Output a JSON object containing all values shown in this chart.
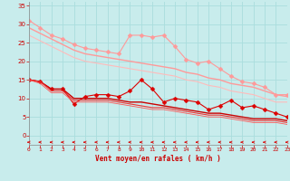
{
  "background_color": "#c8ecec",
  "grid_color": "#aadddd",
  "xlabel": "Vent moyen/en rafales ( km/h )",
  "xlabel_color": "#cc0000",
  "tick_color": "#cc0000",
  "x_ticks": [
    0,
    1,
    2,
    3,
    4,
    5,
    6,
    7,
    8,
    9,
    10,
    11,
    12,
    13,
    14,
    15,
    16,
    17,
    18,
    19,
    20,
    21,
    22,
    23
  ],
  "y_ticks": [
    0,
    5,
    10,
    15,
    20,
    25,
    30,
    35
  ],
  "ylim": [
    -2.5,
    36
  ],
  "xlim": [
    0,
    23
  ],
  "lines": [
    {
      "x": [
        0,
        1,
        2,
        3,
        4,
        5,
        6,
        7,
        8,
        9,
        10,
        11,
        12,
        13,
        14,
        15,
        16,
        17,
        18,
        19,
        20,
        21,
        22,
        23
      ],
      "y": [
        31,
        29,
        27,
        26,
        24.5,
        23.5,
        23,
        22.5,
        22,
        27,
        27,
        26.5,
        27,
        24,
        20.5,
        19.5,
        20,
        18,
        16,
        14.5,
        14,
        13,
        11,
        11
      ],
      "color": "#ff9999",
      "marker": "D",
      "lw": 0.8,
      "ms": 2.5
    },
    {
      "x": [
        0,
        1,
        2,
        3,
        4,
        5,
        6,
        7,
        8,
        9,
        10,
        11,
        12,
        13,
        14,
        15,
        16,
        17,
        18,
        19,
        20,
        21,
        22,
        23
      ],
      "y": [
        29,
        27.5,
        26,
        24.5,
        23,
        22,
        21.5,
        21,
        20.5,
        20,
        19.5,
        19,
        18.5,
        18,
        17,
        16.5,
        15.5,
        15,
        14,
        13.5,
        13,
        12,
        11,
        10.5
      ],
      "color": "#ff9999",
      "marker": null,
      "lw": 1.0,
      "ms": 0
    },
    {
      "x": [
        0,
        1,
        2,
        3,
        4,
        5,
        6,
        7,
        8,
        9,
        10,
        11,
        12,
        13,
        14,
        15,
        16,
        17,
        18,
        19,
        20,
        21,
        22,
        23
      ],
      "y": [
        27,
        25.5,
        24,
        22.5,
        21,
        20,
        19.5,
        19,
        18.5,
        18,
        17.5,
        17,
        16.5,
        16,
        15,
        14.5,
        13.5,
        13,
        12,
        11.5,
        11,
        10,
        9,
        9
      ],
      "color": "#ffbbbb",
      "marker": null,
      "lw": 0.8,
      "ms": 0
    },
    {
      "x": [
        0,
        1,
        2,
        3,
        4,
        5,
        6,
        7,
        8,
        9,
        10,
        11,
        12,
        13,
        14,
        15,
        16,
        17,
        18,
        19,
        20,
        21,
        22,
        23
      ],
      "y": [
        15,
        14.5,
        12.5,
        12.5,
        8.5,
        10.5,
        11,
        11,
        10.5,
        12,
        15,
        12.5,
        9,
        10,
        9.5,
        9,
        7,
        8,
        9.5,
        7.5,
        8,
        7,
        6,
        5
      ],
      "color": "#dd0000",
      "marker": "D",
      "lw": 0.8,
      "ms": 2.5
    },
    {
      "x": [
        0,
        1,
        2,
        3,
        4,
        5,
        6,
        7,
        8,
        9,
        10,
        11,
        12,
        13,
        14,
        15,
        16,
        17,
        18,
        19,
        20,
        21,
        22,
        23
      ],
      "y": [
        15,
        14.5,
        12.5,
        12.5,
        10,
        10,
        10,
        10,
        9.5,
        9,
        9,
        8.5,
        8,
        7.5,
        7,
        6.5,
        6,
        6,
        5.5,
        5,
        4.5,
        4.5,
        4.5,
        4
      ],
      "color": "#cc0000",
      "marker": null,
      "lw": 1.0,
      "ms": 0
    },
    {
      "x": [
        0,
        1,
        2,
        3,
        4,
        5,
        6,
        7,
        8,
        9,
        10,
        11,
        12,
        13,
        14,
        15,
        16,
        17,
        18,
        19,
        20,
        21,
        22,
        23
      ],
      "y": [
        15,
        14.5,
        12,
        12,
        9.5,
        9.5,
        9.5,
        9.5,
        9,
        8.5,
        8,
        7.5,
        7.5,
        7,
        6.5,
        6,
        5.5,
        5.5,
        5,
        4.5,
        4,
        4,
        4,
        3.5
      ],
      "color": "#ee3333",
      "marker": null,
      "lw": 0.8,
      "ms": 0
    },
    {
      "x": [
        0,
        1,
        2,
        3,
        4,
        5,
        6,
        7,
        8,
        9,
        10,
        11,
        12,
        13,
        14,
        15,
        16,
        17,
        18,
        19,
        20,
        21,
        22,
        23
      ],
      "y": [
        15,
        14,
        11.5,
        11.5,
        9,
        9,
        9,
        9,
        8.5,
        8,
        7.5,
        7,
        7,
        6.5,
        6,
        5.5,
        5,
        5,
        4.5,
        4,
        3.5,
        3.5,
        3.5,
        3
      ],
      "color": "#ff5555",
      "marker": null,
      "lw": 0.6,
      "ms": 0
    }
  ],
  "arrows": {
    "color": "#dd0000",
    "y_data": -1.8,
    "x_positions": [
      0,
      1,
      2,
      3,
      4,
      5,
      6,
      7,
      8,
      9,
      10,
      11,
      12,
      13,
      14,
      15,
      16,
      17,
      18,
      19,
      20,
      21,
      22,
      23
    ]
  }
}
